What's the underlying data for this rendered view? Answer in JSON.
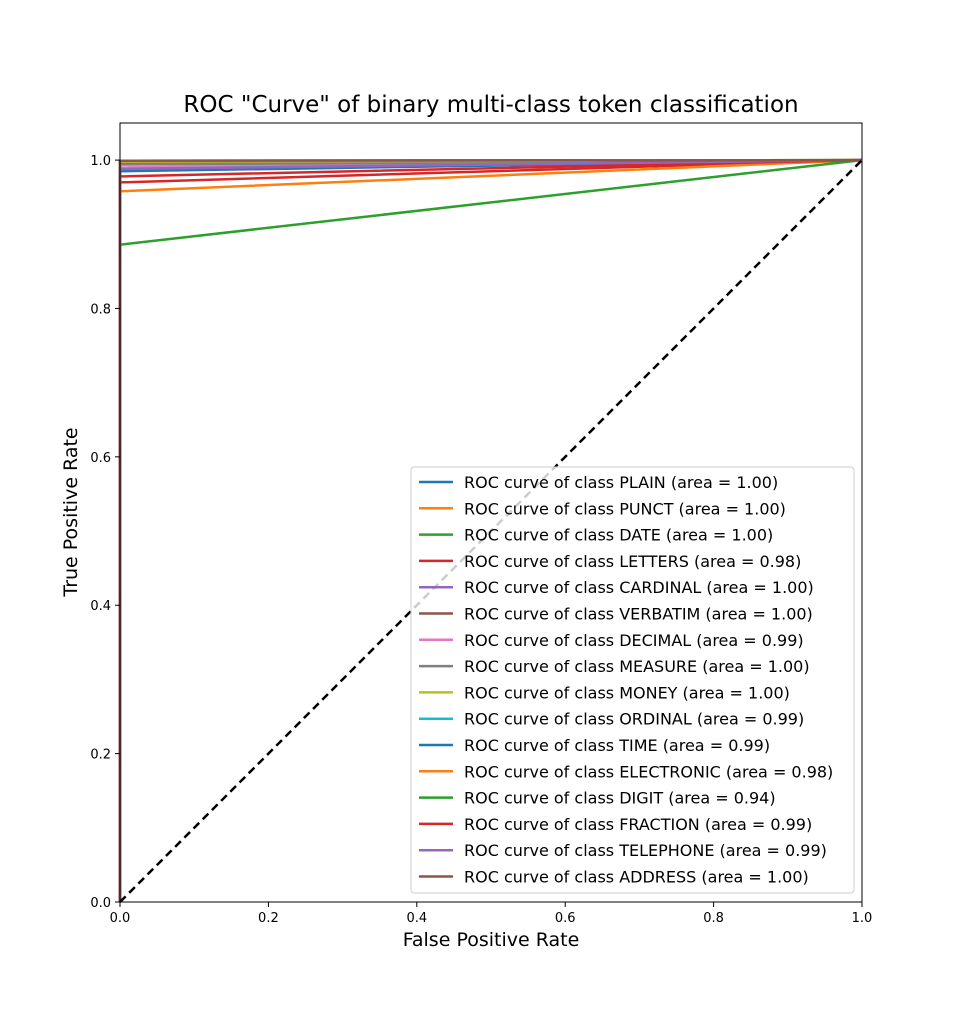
{
  "chart_data": {
    "type": "line",
    "title": "ROC \"Curve\" of binary multi-class token classification",
    "xlabel": "False Positive Rate",
    "ylabel": "True Positive Rate",
    "xlim": [
      0.0,
      1.05
    ],
    "ylim": [
      0.0,
      1.0
    ],
    "x_ticks": [
      0.0,
      0.2,
      0.4,
      0.6,
      0.8,
      1.0
    ],
    "y_ticks": [
      0.0,
      0.2,
      0.4,
      0.6,
      0.8,
      1.0
    ],
    "x_tick_labels": [
      "0.0",
      "0.2",
      "0.4",
      "0.6",
      "0.8",
      "1.0"
    ],
    "y_tick_labels": [
      "0.0",
      "0.2",
      "0.4",
      "0.6",
      "0.8",
      "1.0"
    ],
    "grid": false,
    "legend_position": "lower-right",
    "series": [
      {
        "name": "ROC curve of class PLAIN (area = 1.00)",
        "color": "#1f77b4",
        "points": [
          [
            0,
            0
          ],
          [
            0,
            0.997
          ],
          [
            1,
            1
          ]
        ]
      },
      {
        "name": "ROC curve of class PUNCT (area = 1.00)",
        "color": "#ff7f0e",
        "points": [
          [
            0,
            0
          ],
          [
            0,
            0.999
          ],
          [
            1,
            1
          ]
        ]
      },
      {
        "name": "ROC curve of class DATE (area = 1.00)",
        "color": "#2ca02c",
        "points": [
          [
            0,
            0
          ],
          [
            0,
            0.999
          ],
          [
            1,
            1
          ]
        ]
      },
      {
        "name": "ROC curve of class LETTERS (area = 0.98)",
        "color": "#d62728",
        "points": [
          [
            0,
            0
          ],
          [
            0,
            0.97
          ],
          [
            1,
            1
          ]
        ]
      },
      {
        "name": "ROC curve of class CARDINAL (area = 1.00)",
        "color": "#9467bd",
        "points": [
          [
            0,
            0
          ],
          [
            0,
            0.995
          ],
          [
            1,
            1
          ]
        ]
      },
      {
        "name": "ROC curve of class VERBATIM (area = 1.00)",
        "color": "#8c564b",
        "points": [
          [
            0,
            0
          ],
          [
            0,
            0.996
          ],
          [
            1,
            1
          ]
        ]
      },
      {
        "name": "ROC curve of class DECIMAL (area = 0.99)",
        "color": "#e377c2",
        "points": [
          [
            0,
            0
          ],
          [
            0,
            0.99
          ],
          [
            1,
            1
          ]
        ]
      },
      {
        "name": "ROC curve of class MEASURE (area = 1.00)",
        "color": "#7f7f7f",
        "points": [
          [
            0,
            0
          ],
          [
            0,
            0.994
          ],
          [
            1,
            1
          ]
        ]
      },
      {
        "name": "ROC curve of class MONEY (area = 1.00)",
        "color": "#bcbd22",
        "points": [
          [
            0,
            0
          ],
          [
            0,
            0.998
          ],
          [
            1,
            1
          ]
        ]
      },
      {
        "name": "ROC curve of class ORDINAL (area = 0.99)",
        "color": "#17becf",
        "points": [
          [
            0,
            0
          ],
          [
            0,
            0.988
          ],
          [
            1,
            1
          ]
        ]
      },
      {
        "name": "ROC curve of class TIME (area = 0.99)",
        "color": "#1f77b4",
        "points": [
          [
            0,
            0
          ],
          [
            0,
            0.985
          ],
          [
            1,
            1
          ]
        ]
      },
      {
        "name": "ROC curve of class ELECTRONIC (area = 0.98)",
        "color": "#ff7f0e",
        "points": [
          [
            0,
            0
          ],
          [
            0,
            0.958
          ],
          [
            1,
            1
          ]
        ]
      },
      {
        "name": "ROC curve of class DIGIT (area = 0.94)",
        "color": "#2ca02c",
        "points": [
          [
            0,
            0
          ],
          [
            0,
            0.886
          ],
          [
            1,
            1
          ]
        ]
      },
      {
        "name": "ROC curve of class FRACTION (area = 0.99)",
        "color": "#d62728",
        "points": [
          [
            0,
            0
          ],
          [
            0,
            0.978
          ],
          [
            1,
            1
          ]
        ]
      },
      {
        "name": "ROC curve of class TELEPHONE (area = 0.99)",
        "color": "#9467bd",
        "points": [
          [
            0,
            0
          ],
          [
            0,
            0.988
          ],
          [
            1,
            1
          ]
        ]
      },
      {
        "name": "ROC curve of class ADDRESS (area = 1.00)",
        "color": "#8c564b",
        "points": [
          [
            0,
            0
          ],
          [
            0,
            0.999
          ],
          [
            1,
            1
          ]
        ]
      }
    ],
    "reference_line": {
      "points": [
        [
          0,
          0
        ],
        [
          1,
          1
        ]
      ],
      "color": "#000000",
      "style": "dashed"
    }
  }
}
